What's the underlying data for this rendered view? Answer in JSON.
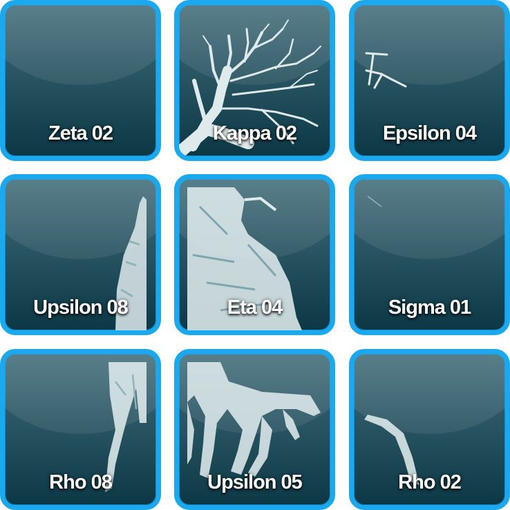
{
  "tiles": [
    {
      "label": "Zeta 02"
    },
    {
      "label": "Kappa 02"
    },
    {
      "label": "Epsilon 04"
    },
    {
      "label": "Upsilon 08"
    },
    {
      "label": "Eta 04"
    },
    {
      "label": "Sigma 01"
    },
    {
      "label": "Rho 08"
    },
    {
      "label": "Upsilon 05"
    },
    {
      "label": "Rho 02"
    }
  ],
  "colors": {
    "tile_border": "#1aa9ee",
    "tile_top": "#3f6c78",
    "tile_bottom": "#0c3846",
    "label": "#ffffff",
    "artwork": "#dfeaec"
  }
}
